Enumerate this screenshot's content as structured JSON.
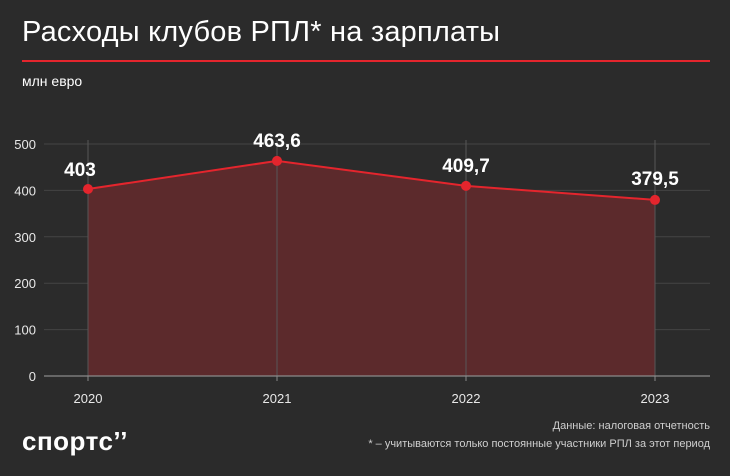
{
  "header": {
    "title": "Расходы клубов РПЛ* на зарплаты",
    "unit": "млн евро"
  },
  "footer": {
    "logo": "спортс’’",
    "source": "Данные: налоговая отчетность",
    "footnote": "* – учитываются только постоянные участники РПЛ за этот период"
  },
  "colors": {
    "accent": "#e4252d",
    "area_fill": "#5c2a2c",
    "background": "#2b2b2b"
  },
  "chart_data": {
    "type": "area",
    "title": "Расходы клубов РПЛ* на зарплаты",
    "xlabel": "",
    "ylabel": "млн евро",
    "categories": [
      "2020",
      "2021",
      "2022",
      "2023"
    ],
    "values": [
      403,
      463.6,
      409.7,
      379.5
    ],
    "value_labels": [
      "403",
      "463,6",
      "409,7",
      "379,5"
    ],
    "yticks": [
      "0",
      "100",
      "200",
      "300",
      "400",
      "500"
    ],
    "ytick_values": [
      0,
      100,
      200,
      300,
      400,
      500
    ],
    "ylim": [
      0,
      500
    ],
    "grid": true,
    "legend": "none"
  }
}
